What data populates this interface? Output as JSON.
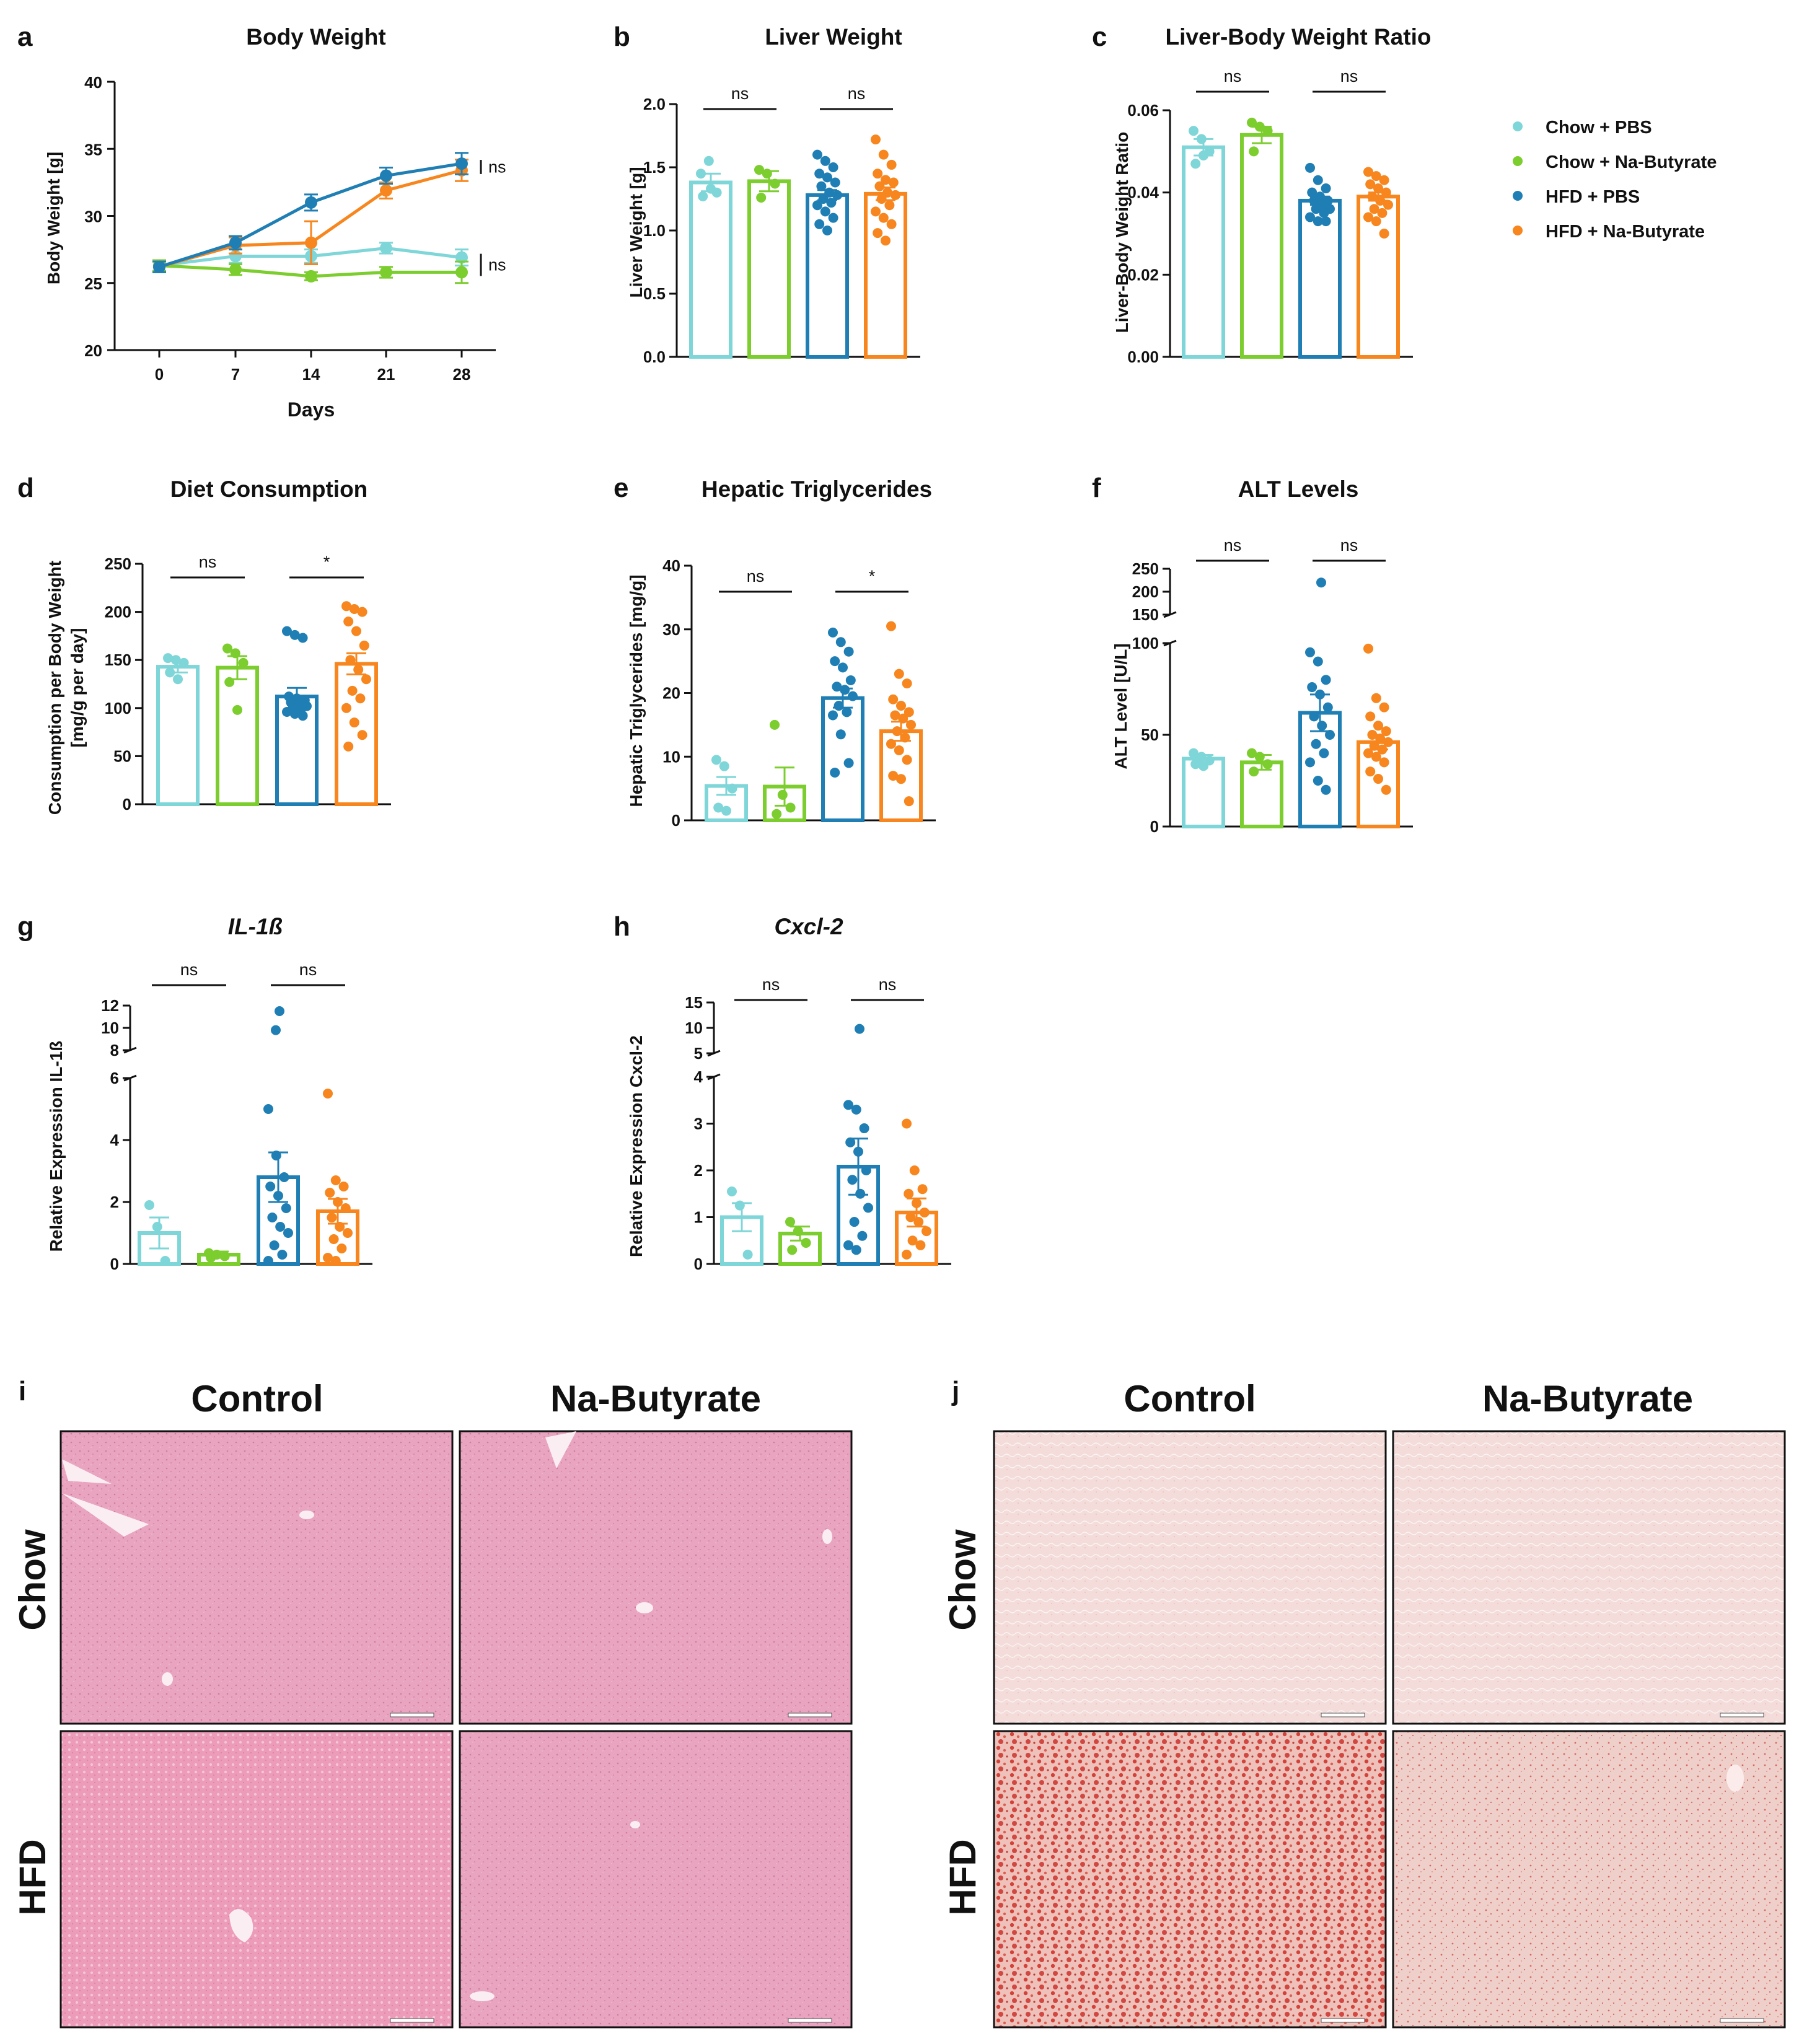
{
  "colors": {
    "chow_pbs": "#7fd6d8",
    "chow_nab": "#7ccd2e",
    "hfd_pbs": "#1f7fb4",
    "hfd_nab": "#f7861e",
    "he_stain": "#e8a2be",
    "he_stain_hfd": "#ea9bb8",
    "oro_chow": "#f2dada",
    "oro_hfd": "#ebb9b0",
    "lipid": "#c8201c"
  },
  "legend": {
    "items": [
      {
        "label": "Chow + PBS",
        "color": "#7fd6d8"
      },
      {
        "label": "Chow + Na-Butyrate",
        "color": "#7ccd2e"
      },
      {
        "label": "HFD + PBS",
        "color": "#1f7fb4"
      },
      {
        "label": "HFD + Na-Butyrate",
        "color": "#f7861e"
      }
    ]
  },
  "chart_data": [
    {
      "id": "a",
      "letter": "a",
      "type": "line",
      "title": "Body Weight",
      "xlabel": "Days",
      "ylabel": "Body Weight [g]",
      "x": [
        0,
        7,
        14,
        21,
        28
      ],
      "ylim": [
        20,
        40
      ],
      "yticks": [
        20,
        25,
        30,
        35,
        40
      ],
      "xticklabels": [
        "0",
        "7",
        "14",
        "21",
        "28"
      ],
      "series": [
        {
          "name": "Chow + PBS",
          "values": [
            26.3,
            27.0,
            27.0,
            27.6,
            26.9
          ],
          "err": [
            0.4,
            0.5,
            0.5,
            0.4,
            0.6
          ]
        },
        {
          "name": "Chow + Na-Butyrate",
          "values": [
            26.3,
            26.0,
            25.5,
            25.8,
            25.8
          ],
          "err": [
            0.4,
            0.4,
            0.3,
            0.4,
            0.8
          ]
        },
        {
          "name": "HFD + PBS",
          "values": [
            26.2,
            28.0,
            31.0,
            33.0,
            33.9
          ],
          "err": [
            0.4,
            0.5,
            0.6,
            0.6,
            0.8
          ]
        },
        {
          "name": "HFD + Na-Butyrate",
          "values": [
            26.2,
            27.8,
            28.0,
            31.9,
            33.4
          ],
          "err": [
            0.4,
            0.6,
            1.6,
            0.6,
            0.8
          ]
        }
      ],
      "annotations": [
        {
          "text": "ns",
          "between": [
            2,
            3
          ]
        },
        {
          "text": "ns",
          "between": [
            0,
            1
          ]
        }
      ]
    },
    {
      "id": "b",
      "letter": "b",
      "type": "bar",
      "title": "Liver Weight",
      "ylabel": "Liver Weight [g]",
      "ylim": [
        0,
        2.0
      ],
      "yticks": [
        0.0,
        0.5,
        1.0,
        1.5,
        2.0
      ],
      "yticklabels": [
        "0.0",
        "0.5",
        "1.0",
        "1.5",
        "2.0"
      ],
      "means": [
        1.38,
        1.39,
        1.28,
        1.29
      ],
      "sems": [
        0.07,
        0.08,
        0.04,
        0.05
      ],
      "points": [
        [
          1.45,
          1.55,
          1.3,
          1.27,
          1.33
        ],
        [
          1.48,
          1.45,
          1.37,
          1.26
        ],
        [
          1.6,
          1.55,
          1.5,
          1.45,
          1.42,
          1.38,
          1.35,
          1.3,
          1.28,
          1.25,
          1.22,
          1.2,
          1.15,
          1.1,
          1.05,
          1.0
        ],
        [
          1.72,
          1.6,
          1.52,
          1.45,
          1.4,
          1.38,
          1.35,
          1.3,
          1.28,
          1.25,
          1.2,
          1.15,
          1.1,
          1.05,
          0.98,
          0.92
        ]
      ],
      "sig": [
        {
          "text": "ns",
          "pair": [
            0,
            1
          ]
        },
        {
          "text": "ns",
          "pair": [
            2,
            3
          ]
        }
      ]
    },
    {
      "id": "c",
      "letter": "c",
      "type": "bar",
      "title": "Liver-Body Weight Ratio",
      "ylabel": "Liver-Body Weight Ratio",
      "ylim": [
        0,
        0.06
      ],
      "yticks": [
        0.0,
        0.02,
        0.04,
        0.06
      ],
      "yticklabels": [
        "0.00",
        "0.02",
        "0.04",
        "0.06"
      ],
      "means": [
        0.051,
        0.054,
        0.038,
        0.039
      ],
      "sems": [
        0.002,
        0.002,
        0.001,
        0.001
      ],
      "points": [
        [
          0.055,
          0.053,
          0.05,
          0.047,
          0.049
        ],
        [
          0.057,
          0.056,
          0.055,
          0.05
        ],
        [
          0.046,
          0.043,
          0.041,
          0.04,
          0.039,
          0.038,
          0.038,
          0.037,
          0.036,
          0.036,
          0.035,
          0.034,
          0.033,
          0.033
        ],
        [
          0.045,
          0.044,
          0.043,
          0.042,
          0.041,
          0.04,
          0.039,
          0.038,
          0.037,
          0.036,
          0.035,
          0.034,
          0.033,
          0.03
        ]
      ],
      "sig": [
        {
          "text": "ns",
          "pair": [
            0,
            1
          ]
        },
        {
          "text": "ns",
          "pair": [
            2,
            3
          ]
        }
      ]
    },
    {
      "id": "d",
      "letter": "d",
      "type": "bar",
      "title": "Diet Consumption",
      "ylabel": "Consumption per Body Weight",
      "ylabel2": "[mg/g per day]",
      "ylim": [
        0,
        250
      ],
      "yticks": [
        0,
        50,
        100,
        150,
        200,
        250
      ],
      "yticklabels": [
        "0",
        "50",
        "100",
        "150",
        "200",
        "250"
      ],
      "means": [
        143,
        142,
        112,
        146
      ],
      "sems": [
        6,
        12,
        9,
        11
      ],
      "points": [
        [
          152,
          150,
          147,
          137,
          130
        ],
        [
          162,
          157,
          147,
          127,
          98
        ],
        [
          180,
          176,
          173,
          112,
          110,
          108,
          106,
          104,
          102,
          100,
          98,
          96,
          94,
          92
        ],
        [
          206,
          203,
          200,
          190,
          180,
          165,
          150,
          140,
          130,
          118,
          110,
          100,
          85,
          72,
          60
        ]
      ],
      "sig": [
        {
          "text": "ns",
          "pair": [
            0,
            1
          ]
        },
        {
          "text": "*",
          "pair": [
            2,
            3
          ]
        }
      ]
    },
    {
      "id": "e",
      "letter": "e",
      "type": "bar",
      "title": "Hepatic Triglycerides",
      "ylabel": "Hepatic Triglycerides [mg/g]",
      "ylim": [
        0,
        40
      ],
      "yticks": [
        0,
        10,
        20,
        30,
        40
      ],
      "yticklabels": [
        "0",
        "10",
        "20",
        "30",
        "40"
      ],
      "means": [
        5.4,
        5.3,
        19.2,
        14.0
      ],
      "sems": [
        1.4,
        3.0,
        1.5,
        1.5
      ],
      "points": [
        [
          9.5,
          8.5,
          5.0,
          2.0,
          1.5
        ],
        [
          15.0,
          4.0,
          2.0,
          1.0
        ],
        [
          29.5,
          28.0,
          26.5,
          25.0,
          24.0,
          22.0,
          21.0,
          20.5,
          19.5,
          18.0,
          17.0,
          16.5,
          13.5,
          9.0,
          7.5
        ],
        [
          30.5,
          23.0,
          21.5,
          19.0,
          18.0,
          17.0,
          16.5,
          16.0,
          15.0,
          14.0,
          13.0,
          12.0,
          11.0,
          9.5,
          7.0,
          6.5,
          3.0
        ]
      ],
      "sig": [
        {
          "text": "ns",
          "pair": [
            0,
            1
          ]
        },
        {
          "text": "*",
          "pair": [
            2,
            3
          ]
        }
      ]
    },
    {
      "id": "f",
      "letter": "f",
      "type": "bar",
      "title": "ALT Levels",
      "ylabel": "ALT Level [U/L]",
      "ylim": [
        0,
        100
      ],
      "yticks": [
        0,
        50,
        100
      ],
      "yticklabels": [
        "0",
        "50",
        "100"
      ],
      "upper_ticks": [
        "150",
        "200",
        "250"
      ],
      "means": [
        37,
        35,
        62,
        46
      ],
      "sems": [
        2,
        4,
        10,
        4
      ],
      "points": [
        [
          40,
          38,
          36,
          34,
          33
        ],
        [
          40,
          38,
          34,
          30
        ],
        [
          95,
          90,
          80,
          76,
          72,
          65,
          60,
          55,
          50,
          45,
          40,
          35,
          25,
          20
        ],
        [
          97,
          70,
          65,
          60,
          55,
          52,
          50,
          48,
          46,
          44,
          42,
          40,
          38,
          35,
          30,
          26,
          20
        ]
      ],
      "extreme_points": [
        {
          "group": 2,
          "label": "220"
        }
      ],
      "sig": [
        {
          "text": "ns",
          "pair": [
            0,
            1
          ]
        },
        {
          "text": "ns",
          "pair": [
            2,
            3
          ]
        }
      ]
    },
    {
      "id": "g",
      "letter": "g",
      "type": "bar",
      "title": "IL-1ß",
      "title_italic": true,
      "ylabel": "Relative Expression IL-1ß",
      "ylim": [
        0,
        6
      ],
      "yticks": [
        0,
        2,
        4,
        6
      ],
      "yticklabels": [
        "0",
        "2",
        "4",
        "6"
      ],
      "upper_ticks": [
        "8",
        "10",
        "12"
      ],
      "means": [
        1.0,
        0.3,
        2.8,
        1.7
      ],
      "sems": [
        0.5,
        0.1,
        0.8,
        0.4
      ],
      "points": [
        [
          1.9,
          1.2,
          0.1
        ],
        [
          0.35,
          0.3,
          0.25,
          0.2
        ],
        [
          5.0,
          3.5,
          2.8,
          2.5,
          2.2,
          1.8,
          1.5,
          1.2,
          1.0,
          0.6,
          0.3,
          0.1
        ],
        [
          5.5,
          2.7,
          2.5,
          2.3,
          2.0,
          1.8,
          1.5,
          1.2,
          1.0,
          0.8,
          0.5,
          0.2,
          0.1
        ]
      ],
      "extreme_points": [
        {
          "group": 2,
          "label": "11.5"
        },
        {
          "group": 2,
          "label": "9.8"
        }
      ],
      "sig": [
        {
          "text": "ns",
          "pair": [
            0,
            1
          ]
        },
        {
          "text": "ns",
          "pair": [
            2,
            3
          ]
        }
      ]
    },
    {
      "id": "h",
      "letter": "h",
      "type": "bar",
      "title": "Cxcl-2",
      "title_italic": true,
      "ylabel": "Relative Expression Cxcl-2",
      "ylim": [
        0,
        4
      ],
      "yticks": [
        0,
        1,
        2,
        3,
        4
      ],
      "yticklabels": [
        "0",
        "1",
        "2",
        "3",
        "4"
      ],
      "upper_ticks": [
        "5",
        "10",
        "15"
      ],
      "means": [
        1.0,
        0.65,
        2.08,
        1.1
      ],
      "sems": [
        0.3,
        0.15,
        0.6,
        0.3
      ],
      "points": [
        [
          1.55,
          1.25,
          0.2
        ],
        [
          0.9,
          0.7,
          0.45,
          0.3
        ],
        [
          3.4,
          3.3,
          2.9,
          2.6,
          2.4,
          2.0,
          1.8,
          1.5,
          1.2,
          0.9,
          0.6,
          0.4,
          0.3
        ],
        [
          3.0,
          2.0,
          1.6,
          1.5,
          1.3,
          1.1,
          1.0,
          0.9,
          0.7,
          0.5,
          0.4,
          0.2
        ]
      ],
      "extreme_points": [
        {
          "group": 2,
          "label": "9.8"
        }
      ],
      "sig": [
        {
          "text": "ns",
          "pair": [
            0,
            1
          ]
        },
        {
          "text": "ns",
          "pair": [
            2,
            3
          ]
        }
      ]
    }
  ],
  "histology": {
    "panel_i": {
      "letter": "i",
      "stain": "H&E",
      "col_labels": [
        "Control",
        "Na-Butyrate"
      ],
      "row_labels": [
        "Chow",
        "HFD"
      ]
    },
    "panel_j": {
      "letter": "j",
      "stain": "Oil Red O",
      "col_labels": [
        "Control",
        "Na-Butyrate"
      ],
      "row_labels": [
        "Chow",
        "HFD"
      ]
    }
  }
}
